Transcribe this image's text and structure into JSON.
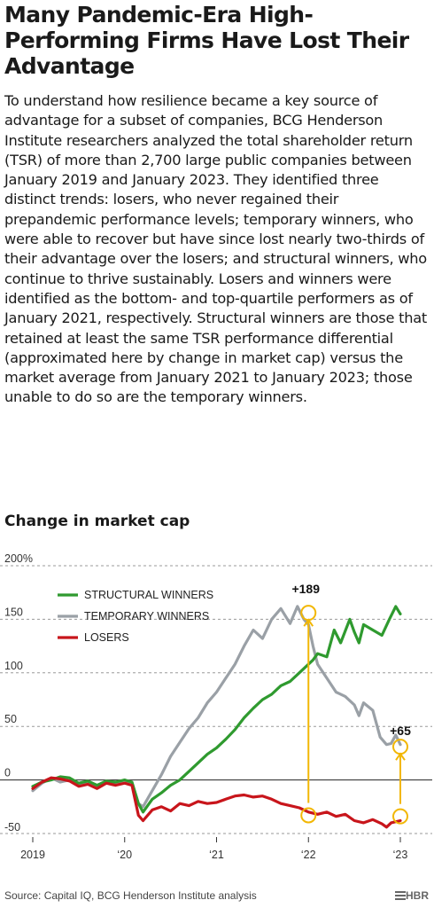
{
  "title": "Many Pandemic-Era High-Performing Firms Have Lost Their Advantage",
  "intro": "To understand how resilience became a key source of advantage for a subset of companies, BCG Henderson Institute researchers analyzed the total shareholder return (TSR) of more than 2,700 large public companies between January 2019 and January 2023. They identified three distinct trends: losers, who never regained their prepandemic performance levels; temporary winners, who were able to recover but have since lost nearly two-thirds of their advantage over the losers; and structural winners, who continue to thrive sustainably. Losers and winners were identified as the bottom- and top-quartile performers as of January 2021, respectively. Structural winners are those that retained at least the same TSR performance differential (approximated here by change in market cap) versus the market average from January 2021 to January 2023; those unable to do so are the temporary winners.",
  "source": "Source: Capital IQ, BCG Henderson Institute analysis",
  "logo": {
    "icon": "hbr-logo-icon",
    "text": "HBR"
  },
  "chart_data": {
    "type": "line",
    "title": "Change in market cap",
    "x_tick_labels": [
      "2019",
      "‘20",
      "‘21",
      "‘22",
      "‘23"
    ],
    "x_tick_values": [
      2019,
      2020,
      2021,
      2022,
      2023
    ],
    "y_tick_labels": [
      "200%",
      "150",
      "100",
      "50",
      "0",
      "-50"
    ],
    "y_tick_values": [
      200,
      150,
      100,
      50,
      0,
      -50
    ],
    "xlim": [
      2019,
      2023
    ],
    "ylim": [
      -50,
      200
    ],
    "grid": "horizontal dashed",
    "legend_position": "top-left",
    "colors": {
      "structural": "#2f9a2f",
      "temporary": "#9aa0a6",
      "losers": "#c8151b",
      "annotation": "#f2b705"
    },
    "series": [
      {
        "name": "STRUCTURAL WINNERS",
        "color": "#2f9a2f",
        "points": [
          [
            2019.0,
            -6
          ],
          [
            2019.1,
            -2
          ],
          [
            2019.2,
            0
          ],
          [
            2019.3,
            3
          ],
          [
            2019.4,
            2
          ],
          [
            2019.5,
            -3
          ],
          [
            2019.6,
            -1
          ],
          [
            2019.7,
            -5
          ],
          [
            2019.8,
            -1
          ],
          [
            2019.9,
            -2
          ],
          [
            2020.0,
            0
          ],
          [
            2020.08,
            -2
          ],
          [
            2020.15,
            -22
          ],
          [
            2020.2,
            -30
          ],
          [
            2020.3,
            -18
          ],
          [
            2020.4,
            -12
          ],
          [
            2020.5,
            -5
          ],
          [
            2020.6,
            0
          ],
          [
            2020.7,
            8
          ],
          [
            2020.8,
            16
          ],
          [
            2020.9,
            24
          ],
          [
            2021.0,
            30
          ],
          [
            2021.1,
            38
          ],
          [
            2021.2,
            47
          ],
          [
            2021.3,
            58
          ],
          [
            2021.4,
            67
          ],
          [
            2021.5,
            75
          ],
          [
            2021.6,
            80
          ],
          [
            2021.7,
            88
          ],
          [
            2021.8,
            92
          ],
          [
            2021.9,
            100
          ],
          [
            2022.0,
            108
          ],
          [
            2022.05,
            112
          ],
          [
            2022.1,
            118
          ],
          [
            2022.2,
            115
          ],
          [
            2022.28,
            140
          ],
          [
            2022.35,
            128
          ],
          [
            2022.45,
            150
          ],
          [
            2022.5,
            138
          ],
          [
            2022.55,
            128
          ],
          [
            2022.6,
            145
          ],
          [
            2022.7,
            140
          ],
          [
            2022.8,
            135
          ],
          [
            2022.88,
            150
          ],
          [
            2022.95,
            162
          ],
          [
            2023.0,
            155
          ]
        ]
      },
      {
        "name": "TEMPORARY WINNERS",
        "color": "#9aa0a6",
        "points": [
          [
            2019.0,
            -10
          ],
          [
            2019.1,
            -3
          ],
          [
            2019.2,
            2
          ],
          [
            2019.3,
            -2
          ],
          [
            2019.4,
            0
          ],
          [
            2019.5,
            -4
          ],
          [
            2019.6,
            -2
          ],
          [
            2019.7,
            -6
          ],
          [
            2019.8,
            -1
          ],
          [
            2019.9,
            -3
          ],
          [
            2020.0,
            0
          ],
          [
            2020.08,
            -3
          ],
          [
            2020.15,
            -22
          ],
          [
            2020.2,
            -25
          ],
          [
            2020.3,
            -10
          ],
          [
            2020.4,
            5
          ],
          [
            2020.5,
            22
          ],
          [
            2020.6,
            35
          ],
          [
            2020.7,
            48
          ],
          [
            2020.8,
            58
          ],
          [
            2020.9,
            72
          ],
          [
            2021.0,
            82
          ],
          [
            2021.1,
            95
          ],
          [
            2021.2,
            108
          ],
          [
            2021.3,
            125
          ],
          [
            2021.4,
            140
          ],
          [
            2021.5,
            132
          ],
          [
            2021.6,
            150
          ],
          [
            2021.7,
            160
          ],
          [
            2021.8,
            146
          ],
          [
            2021.88,
            162
          ],
          [
            2021.95,
            150
          ],
          [
            2022.0,
            145
          ],
          [
            2022.05,
            125
          ],
          [
            2022.1,
            108
          ],
          [
            2022.2,
            95
          ],
          [
            2022.3,
            82
          ],
          [
            2022.4,
            78
          ],
          [
            2022.5,
            70
          ],
          [
            2022.55,
            60
          ],
          [
            2022.6,
            72
          ],
          [
            2022.7,
            65
          ],
          [
            2022.78,
            40
          ],
          [
            2022.85,
            33
          ],
          [
            2022.9,
            34
          ],
          [
            2022.95,
            42
          ],
          [
            2023.0,
            33
          ]
        ]
      },
      {
        "name": "LOSERS",
        "color": "#c8151b",
        "points": [
          [
            2019.0,
            -8
          ],
          [
            2019.1,
            -2
          ],
          [
            2019.2,
            2
          ],
          [
            2019.3,
            1
          ],
          [
            2019.4,
            -1
          ],
          [
            2019.5,
            -6
          ],
          [
            2019.6,
            -4
          ],
          [
            2019.7,
            -8
          ],
          [
            2019.8,
            -3
          ],
          [
            2019.9,
            -5
          ],
          [
            2020.0,
            -3
          ],
          [
            2020.08,
            -5
          ],
          [
            2020.15,
            -33
          ],
          [
            2020.2,
            -38
          ],
          [
            2020.3,
            -28
          ],
          [
            2020.4,
            -25
          ],
          [
            2020.5,
            -29
          ],
          [
            2020.6,
            -22
          ],
          [
            2020.7,
            -24
          ],
          [
            2020.8,
            -20
          ],
          [
            2020.9,
            -22
          ],
          [
            2021.0,
            -21
          ],
          [
            2021.1,
            -18
          ],
          [
            2021.2,
            -15
          ],
          [
            2021.3,
            -14
          ],
          [
            2021.4,
            -16
          ],
          [
            2021.5,
            -15
          ],
          [
            2021.6,
            -18
          ],
          [
            2021.7,
            -22
          ],
          [
            2021.8,
            -24
          ],
          [
            2021.9,
            -26
          ],
          [
            2022.0,
            -30
          ],
          [
            2022.1,
            -32
          ],
          [
            2022.2,
            -30
          ],
          [
            2022.3,
            -34
          ],
          [
            2022.4,
            -32
          ],
          [
            2022.5,
            -38
          ],
          [
            2022.6,
            -40
          ],
          [
            2022.7,
            -37
          ],
          [
            2022.8,
            -41
          ],
          [
            2022.85,
            -44
          ],
          [
            2022.9,
            -40
          ],
          [
            2023.0,
            -38
          ]
        ]
      }
    ],
    "annotations": [
      {
        "label": "+189",
        "x": 2022.0,
        "y_top": 156,
        "y_bottom": -33
      },
      {
        "label": "+65",
        "x": 2023.0,
        "y_top": 31,
        "y_bottom": -34
      }
    ]
  }
}
